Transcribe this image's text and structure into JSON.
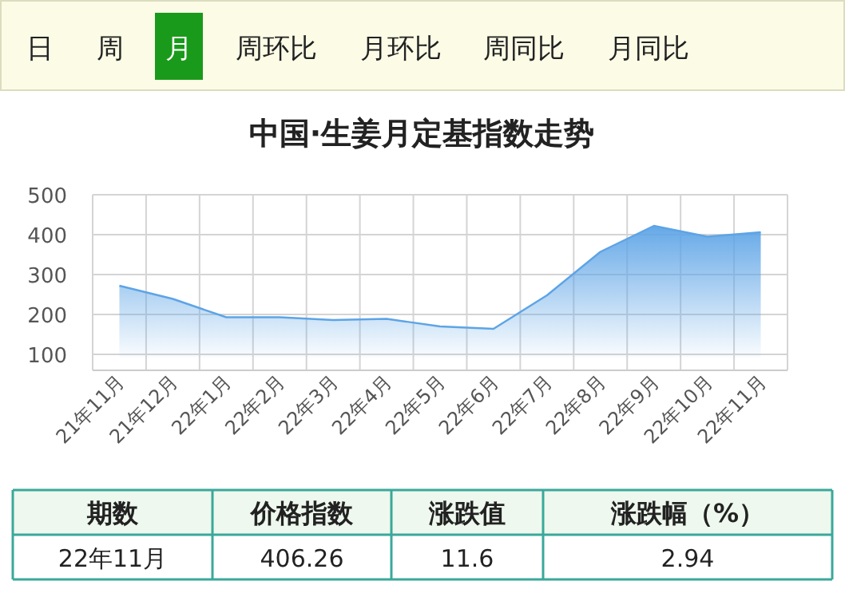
{
  "chart_data": [
    {
      "type": "other",
      "annotations": [
        "日",
        "周",
        "月",
        "周环比",
        "月环比",
        "周同比",
        "月同比"
      ]
    },
    {
      "type": "area",
      "title": "中国·生姜月定基指数走势",
      "categories": [
        "21年11月",
        "21年12月",
        "22年1月",
        "22年2月",
        "22年3月",
        "22年4月",
        "22年5月",
        "22年6月",
        "22年7月",
        "22年8月",
        "22年9月",
        "22年10月",
        "22年11月"
      ],
      "values": [
        272,
        239,
        193,
        193,
        186,
        189,
        170,
        164,
        248,
        357,
        422,
        395,
        406
      ],
      "color": "#5da4e6",
      "ylim": [
        60,
        500
      ],
      "yticks": [
        100,
        200,
        300,
        400,
        500
      ],
      "grid": true
    },
    {
      "type": "other",
      "annotations": [
        "期数",
        "价格指数",
        "涨跌值",
        "涨跌幅（%）",
        "22年11月",
        "406.26",
        "11.6",
        "2.94"
      ]
    }
  ]
}
